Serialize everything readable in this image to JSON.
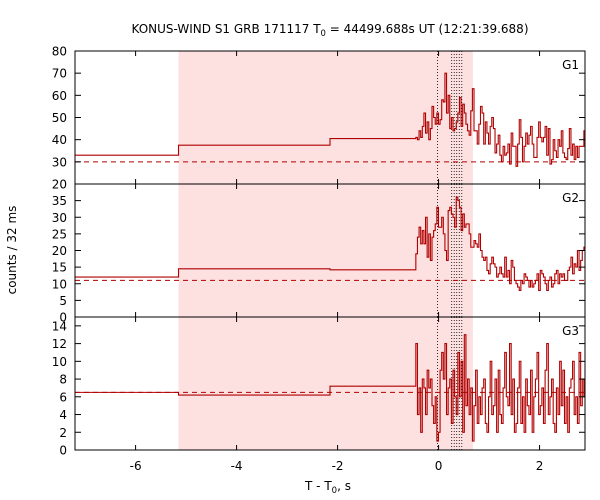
{
  "chart_data": {
    "type": "line",
    "title_main": "KONUS-WIND S1 GRB 171117 T",
    "title_sub": "0",
    "title_rest": " = 44499.688s UT (12:21:39.688)",
    "xlabel_main": "T - T",
    "xlabel_sub": "0",
    "xlabel_rest": ", s",
    "ylabel": "counts / 32 ms",
    "xlim": [
      -7.2,
      2.9
    ],
    "x_ticks": [
      -6,
      -4,
      -2,
      0,
      2
    ],
    "x_tick_labels": [
      "-6",
      "-4",
      "-2",
      "0",
      "2"
    ],
    "shaded_interval": [
      -5.15,
      0.68
    ],
    "vertical_markers": [
      -0.02,
      0.26,
      0.31,
      0.36,
      0.41,
      0.46
    ],
    "line_color": "#b00000",
    "shade_color": "#fde0e0",
    "panels": [
      {
        "name": "G1",
        "ylim": [
          20,
          80
        ],
        "yticks": [
          20,
          30,
          40,
          50,
          60,
          70,
          80
        ],
        "background_level": 30,
        "steps": [
          {
            "x0": -7.2,
            "x1": -5.15,
            "y": 33
          },
          {
            "x0": -5.15,
            "x1": -2.15,
            "y": 37.5
          },
          {
            "x0": -2.15,
            "x1": -0.45,
            "y": 40.5
          }
        ],
        "fine": {
          "x0": -0.45,
          "dt": 0.032,
          "y": [
            41,
            40,
            44,
            41,
            46,
            52,
            43,
            48,
            40,
            45,
            55,
            50,
            47,
            52,
            47,
            49,
            58,
            57,
            70,
            52,
            60,
            45,
            50,
            44,
            45,
            48,
            52,
            59,
            46,
            56,
            52,
            47,
            44,
            42,
            53,
            63,
            44,
            44,
            38,
            47,
            55,
            52,
            38,
            48,
            43,
            38,
            46,
            50,
            45,
            34,
            38,
            42,
            33,
            30,
            37,
            33,
            34,
            38,
            29,
            43,
            37,
            37,
            28,
            38,
            49,
            41,
            30,
            37,
            43,
            38,
            42,
            46,
            38,
            32,
            32,
            41,
            48,
            41,
            39,
            41,
            46,
            33,
            45,
            29,
            31,
            40,
            35,
            32,
            40,
            37,
            44,
            34,
            32,
            31,
            36,
            45,
            33,
            38,
            31,
            37,
            32,
            37,
            37,
            37,
            44
          ]
        }
      },
      {
        "name": "G2",
        "ylim": [
          0,
          40
        ],
        "yticks": [
          0,
          5,
          10,
          15,
          20,
          25,
          30,
          35
        ],
        "background_level": 11,
        "steps": [
          {
            "x0": -7.2,
            "x1": -5.15,
            "y": 12
          },
          {
            "x0": -5.15,
            "x1": -2.15,
            "y": 14.5
          },
          {
            "x0": -2.15,
            "x1": -0.45,
            "y": 14.2
          }
        ],
        "fine": {
          "x0": -0.45,
          "dt": 0.032,
          "y": [
            19,
            24,
            27,
            22,
            26,
            22,
            30,
            18,
            25,
            17,
            24,
            26,
            28,
            33,
            27,
            27,
            30,
            25,
            20,
            17,
            32,
            33,
            31,
            30,
            27,
            36,
            35,
            33,
            26,
            31,
            27,
            28,
            28,
            25,
            21,
            21,
            23,
            22,
            21,
            25,
            20,
            18,
            17,
            18,
            14,
            13,
            16,
            18,
            16,
            15,
            12,
            13,
            15,
            13,
            12,
            18,
            12,
            14,
            10,
            17,
            15,
            11,
            10,
            9,
            8,
            11,
            10,
            13,
            12,
            11,
            9,
            11,
            9,
            10,
            11,
            13,
            8,
            14,
            13,
            12,
            10,
            8,
            11,
            12,
            9,
            10,
            13,
            14,
            10,
            13,
            12,
            13,
            11,
            11,
            14,
            15,
            18,
            13,
            16,
            15,
            20,
            14,
            17,
            20,
            21
          ]
        }
      },
      {
        "name": "G3",
        "ylim": [
          0,
          15
        ],
        "yticks": [
          0,
          2,
          4,
          6,
          8,
          10,
          12,
          14
        ],
        "background_level": 6.5,
        "steps": [
          {
            "x0": -7.2,
            "x1": -5.15,
            "y": 6.5
          },
          {
            "x0": -5.15,
            "x1": -2.15,
            "y": 6.2
          },
          {
            "x0": -2.15,
            "x1": -0.45,
            "y": 7.2
          }
        ],
        "fine": {
          "x0": -0.45,
          "dt": 0.032,
          "y": [
            12,
            4,
            7,
            2,
            8,
            7,
            4,
            9,
            7,
            8,
            5,
            3,
            6,
            1,
            2,
            9,
            11,
            8,
            12,
            4,
            7,
            8,
            3,
            9,
            6,
            4,
            11,
            6,
            10,
            2,
            13,
            5,
            8,
            4,
            7,
            1,
            5,
            9,
            3,
            6,
            4,
            7,
            8,
            3,
            2,
            6,
            10,
            4,
            5,
            8,
            2,
            9,
            4,
            3,
            7,
            11,
            6,
            5,
            12,
            4,
            8,
            2,
            3,
            7,
            10,
            3,
            6,
            2,
            8,
            5,
            4,
            9,
            2,
            6,
            8,
            11,
            4,
            5,
            7,
            3,
            9,
            12,
            4,
            6,
            8,
            3,
            2,
            7,
            4,
            10,
            5,
            9,
            3,
            6,
            2,
            7,
            8,
            10,
            4,
            6,
            3,
            11,
            5,
            8,
            6
          ]
        }
      }
    ]
  }
}
